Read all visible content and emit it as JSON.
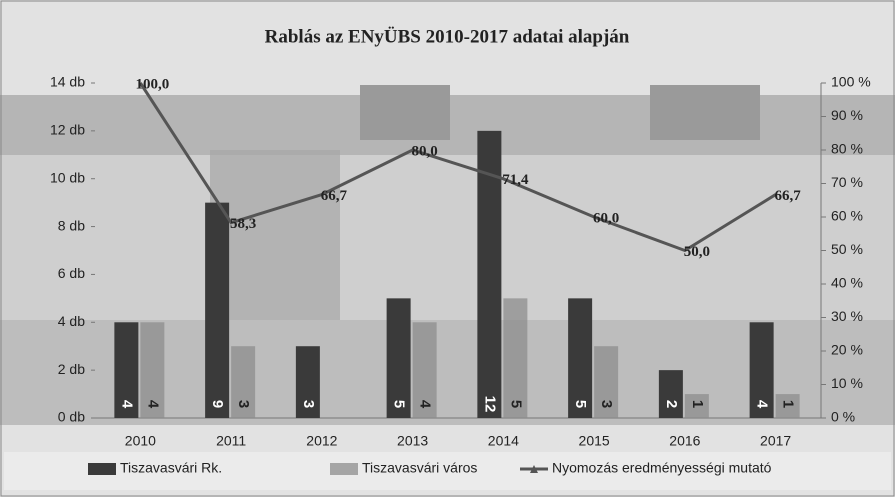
{
  "chart_data": {
    "type": "bar",
    "title": "Rablás az ENyÜBS 2010-2017 adatai alapján",
    "categories": [
      "2010",
      "2011",
      "2012",
      "2013",
      "2014",
      "2015",
      "2016",
      "2017"
    ],
    "series": [
      {
        "name": "Tiszavasvári Rk.",
        "color": "#3a3a3a",
        "values": [
          4,
          9,
          3,
          5,
          12,
          5,
          2,
          4
        ]
      },
      {
        "name": "Tiszavasvári város",
        "color": "#8e8e8e",
        "values": [
          4,
          3,
          null,
          4,
          5,
          3,
          1,
          1
        ]
      },
      {
        "name": "Nyomozás eredményességi mutató",
        "type": "line",
        "axis": "y2",
        "color": "#555555",
        "values": [
          100.0,
          58.3,
          66.7,
          80.0,
          71.4,
          60.0,
          50.0,
          66.7
        ],
        "value_labels": [
          "100,0",
          "58,3",
          "66,7",
          "80,0",
          "71,4",
          "60,0",
          "50,0",
          "66,7"
        ]
      }
    ],
    "ylim": [
      0,
      14
    ],
    "yticks": [
      {
        "value": 0,
        "label": "0 db"
      },
      {
        "value": 2,
        "label": "2 db"
      },
      {
        "value": 4,
        "label": "4 db"
      },
      {
        "value": 6,
        "label": "6 db"
      },
      {
        "value": 8,
        "label": "8 db"
      },
      {
        "value": 10,
        "label": "10 db"
      },
      {
        "value": 12,
        "label": "12 db"
      },
      {
        "value": 14,
        "label": "14 db"
      }
    ],
    "y2lim": [
      0,
      100
    ],
    "y2ticks": [
      {
        "value": 0,
        "label": "0 %"
      },
      {
        "value": 10,
        "label": "10 %"
      },
      {
        "value": 20,
        "label": "20 %"
      },
      {
        "value": 30,
        "label": "30 %"
      },
      {
        "value": 40,
        "label": "40 %"
      },
      {
        "value": 50,
        "label": "50 %"
      },
      {
        "value": 60,
        "label": "60 %"
      },
      {
        "value": 70,
        "label": "70 %"
      },
      {
        "value": 80,
        "label": "80 %"
      },
      {
        "value": 90,
        "label": "90 %"
      },
      {
        "value": 100,
        "label": "100 %"
      }
    ]
  }
}
